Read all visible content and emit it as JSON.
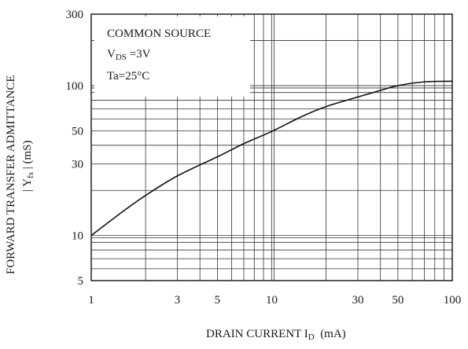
{
  "chart_data": {
    "type": "line",
    "title": "",
    "xlabel": {
      "main": "DRAIN CURRENT I",
      "sub": "D",
      "unit": "(mA)"
    },
    "ylabel": {
      "line1": "FORWARD TRANSFER ADMITTANCE",
      "line2": {
        "pre": "| Y",
        "sub": "fs",
        "post": " | (mS)"
      }
    },
    "x_scale": "log",
    "y_scale": "log",
    "xlim": [
      1,
      100
    ],
    "ylim": [
      5,
      300
    ],
    "x_ticks": [
      {
        "value": 1,
        "label": "1"
      },
      {
        "value": 3,
        "label": "3"
      },
      {
        "value": 5,
        "label": "5"
      },
      {
        "value": 10,
        "label": "10"
      },
      {
        "value": 30,
        "label": "30"
      },
      {
        "value": 50,
        "label": "50"
      },
      {
        "value": 100,
        "label": "100"
      }
    ],
    "y_ticks": [
      {
        "value": 5,
        "label": "5"
      },
      {
        "value": 10,
        "label": "10"
      },
      {
        "value": 30,
        "label": "30"
      },
      {
        "value": 50,
        "label": "50"
      },
      {
        "value": 100,
        "label": "100"
      },
      {
        "value": 300,
        "label": "300"
      }
    ],
    "grid": true,
    "conditions": {
      "line1": "COMMON SOURCE",
      "line2": {
        "pre": "V",
        "sub": "DS",
        "post": " =3V"
      },
      "line3": "Ta=25°C"
    },
    "series": [
      {
        "x": [
          1,
          1.5,
          2,
          3,
          5,
          7,
          10,
          15,
          20,
          30,
          40,
          50,
          70,
          100
        ],
        "y": [
          10,
          14.5,
          18.5,
          25,
          33.5,
          41,
          49.5,
          63,
          72.5,
          84,
          93,
          100,
          106,
          107
        ]
      }
    ]
  }
}
